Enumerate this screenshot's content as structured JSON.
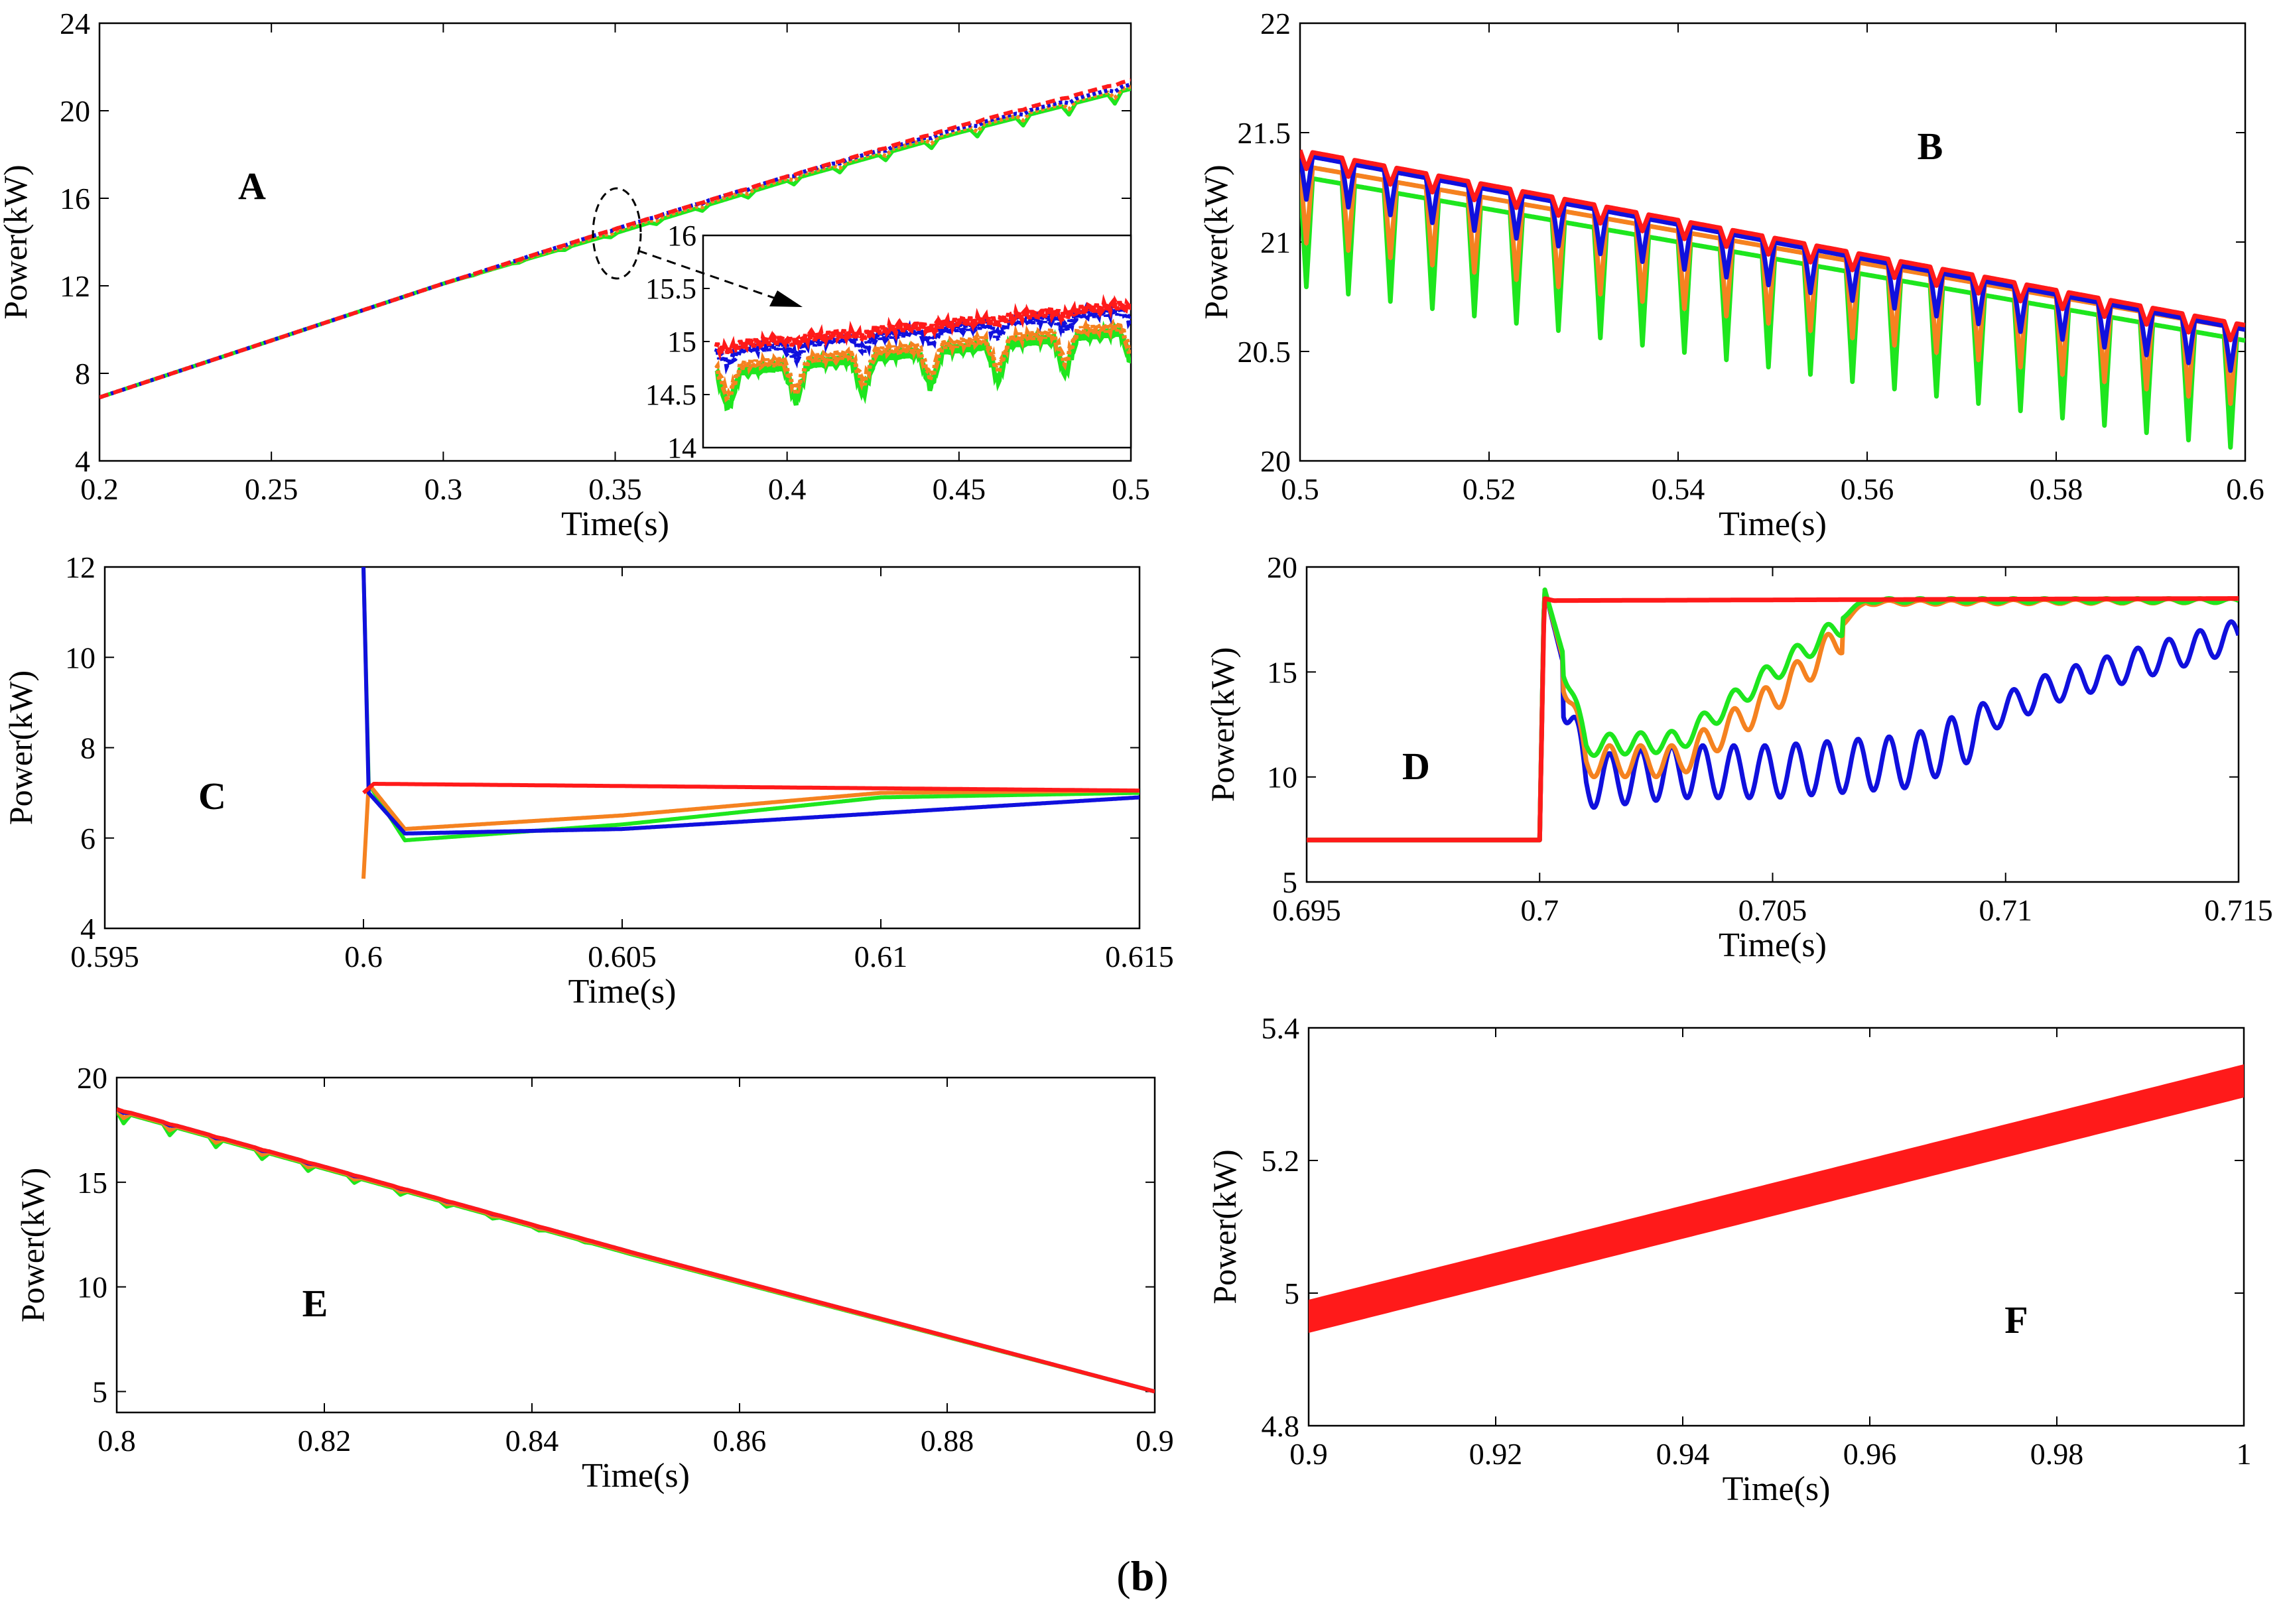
{
  "caption": {
    "paren_open": "(",
    "label": "b",
    "paren_close": ")"
  },
  "colors": {
    "red": "#ff1a1a",
    "orange": "#f58220",
    "green": "#1ee61e",
    "blue": "#1010dd"
  },
  "chart_data": [
    {
      "id": "A",
      "type": "line",
      "panel_label": "A",
      "xlabel": "Time(s)",
      "ylabel": "Power(kW)",
      "xlim": [
        0.2,
        0.5
      ],
      "ylim": [
        4,
        24
      ],
      "xticks": [
        "0.2",
        "0.25",
        "0.3",
        "0.35",
        "0.4",
        "0.45",
        "0.5"
      ],
      "yticks": [
        "4",
        "8",
        "12",
        "16",
        "20",
        "24"
      ],
      "series": [
        {
          "color": "green",
          "style": "solid",
          "x": [
            0.2,
            0.3,
            0.35,
            0.4,
            0.45,
            0.5
          ],
          "y": [
            6.9,
            12.1,
            14.4,
            16.8,
            19.0,
            21.0
          ],
          "ripple": 0.5
        },
        {
          "color": "orange",
          "style": "dotted",
          "x": [
            0.2,
            0.3,
            0.35,
            0.4,
            0.45,
            0.5
          ],
          "y": [
            6.9,
            12.1,
            14.5,
            16.9,
            19.1,
            21.1
          ],
          "ripple": 0.35
        },
        {
          "color": "blue",
          "style": "dotted",
          "x": [
            0.2,
            0.3,
            0.35,
            0.4,
            0.45,
            0.5
          ],
          "y": [
            6.9,
            12.1,
            14.6,
            17.0,
            19.2,
            21.2
          ],
          "ripple": 0.15
        },
        {
          "color": "red",
          "style": "dashed",
          "x": [
            0.2,
            0.3,
            0.35,
            0.4,
            0.45,
            0.5
          ],
          "y": [
            6.9,
            12.1,
            14.6,
            17.0,
            19.3,
            21.4
          ],
          "ripple": 0.05
        }
      ],
      "inset": {
        "ylim": [
          14,
          16
        ],
        "yticks": [
          "14",
          "14.5",
          "15",
          "15.5",
          "16"
        ],
        "series": [
          {
            "color": "green",
            "x": [
              0,
              1
            ],
            "y": [
              14.7,
              15.1
            ],
            "dip": 0.35
          },
          {
            "color": "orange",
            "x": [
              0,
              1
            ],
            "y": [
              14.75,
              15.15
            ],
            "dip": 0.3
          },
          {
            "color": "blue",
            "x": [
              0,
              1
            ],
            "y": [
              14.9,
              15.3
            ],
            "dip": 0.12
          },
          {
            "color": "red",
            "x": [
              0,
              1
            ],
            "y": [
              14.95,
              15.35
            ],
            "dip": 0.04
          }
        ]
      }
    },
    {
      "id": "B",
      "type": "line",
      "panel_label": "B",
      "xlabel": "Time(s)",
      "ylabel": "Power(kW)",
      "xlim": [
        0.5,
        0.6
      ],
      "ylim": [
        20,
        22
      ],
      "xticks": [
        "0.5",
        "0.52",
        "0.54",
        "0.56",
        "0.58",
        "0.6"
      ],
      "yticks": [
        "20",
        "20.5",
        "21",
        "21.5",
        "22"
      ],
      "series": [
        {
          "color": "green",
          "x": [
            0.5,
            0.6
          ],
          "y": [
            21.3,
            20.55
          ],
          "ripple": 0.5
        },
        {
          "color": "orange",
          "x": [
            0.5,
            0.6
          ],
          "y": [
            21.35,
            20.6
          ],
          "ripple": 0.35
        },
        {
          "color": "blue",
          "x": [
            0.5,
            0.6
          ],
          "y": [
            21.4,
            20.6
          ],
          "ripple": 0.2
        },
        {
          "color": "red",
          "x": [
            0.5,
            0.6
          ],
          "y": [
            21.42,
            20.62
          ],
          "ripple": 0.08
        }
      ]
    },
    {
      "id": "C",
      "type": "line",
      "panel_label": "C",
      "xlabel": "Time(s)",
      "ylabel": "Power(kW)",
      "xlim": [
        0.595,
        0.615
      ],
      "ylim": [
        4,
        12
      ],
      "xticks": [
        "0.595",
        "0.6",
        "0.605",
        "0.61",
        "0.615"
      ],
      "yticks": [
        "4",
        "6",
        "8",
        "10",
        "12"
      ],
      "series": [
        {
          "color": "green",
          "x": [
            0.6,
            0.6001,
            0.6008,
            0.605,
            0.61,
            0.615
          ],
          "y": [
            12,
            7.2,
            5.95,
            6.3,
            6.9,
            7.0
          ]
        },
        {
          "color": "orange",
          "x": [
            0.6,
            0.6001,
            0.6008,
            0.605,
            0.61,
            0.615
          ],
          "y": [
            5.1,
            7.2,
            6.2,
            6.5,
            7.0,
            7.05
          ]
        },
        {
          "color": "blue",
          "x": [
            0.6,
            0.6001,
            0.6008,
            0.605,
            0.61,
            0.615
          ],
          "y": [
            12,
            7.0,
            6.1,
            6.2,
            6.55,
            6.9
          ]
        },
        {
          "color": "red",
          "x": [
            0.6,
            0.6002,
            0.615
          ],
          "y": [
            7.0,
            7.2,
            7.05
          ]
        }
      ]
    },
    {
      "id": "D",
      "type": "line",
      "panel_label": "D",
      "xlabel": "Time(s)",
      "ylabel": "Power(kW)",
      "xlim": [
        0.695,
        0.715
      ],
      "ylim": [
        5,
        20
      ],
      "xticks": [
        "0.695",
        "0.7",
        "0.705",
        "0.71",
        "0.715"
      ],
      "yticks": [
        "5",
        "10",
        "15",
        "20"
      ],
      "series": [
        {
          "color": "blue",
          "x": [
            0.695,
            0.7,
            0.7001,
            0.701,
            0.703,
            0.705,
            0.708,
            0.711,
            0.715
          ],
          "y": [
            7,
            7,
            19,
            11,
            11.5,
            11.5,
            12,
            15,
            17.5
          ],
          "ripple": 2.5
        },
        {
          "color": "orange",
          "x": [
            0.695,
            0.7,
            0.7001,
            0.701,
            0.703,
            0.705,
            0.707,
            0.715
          ],
          "y": [
            7,
            7,
            19,
            11.5,
            11.5,
            14.5,
            18.4,
            18.5
          ],
          "ripple": 1.5
        },
        {
          "color": "green",
          "x": [
            0.695,
            0.7,
            0.7001,
            0.701,
            0.703,
            0.705,
            0.707,
            0.715
          ],
          "y": [
            7,
            7,
            19,
            12,
            12.2,
            15.5,
            18.5,
            18.5
          ],
          "ripple": 1.0
        },
        {
          "color": "red",
          "x": [
            0.695,
            0.7,
            0.7001,
            0.7003,
            0.715
          ],
          "y": [
            7,
            7,
            18.5,
            18.4,
            18.5
          ]
        }
      ]
    },
    {
      "id": "E",
      "type": "line",
      "panel_label": "E",
      "xlabel": "Time(s)",
      "ylabel": "Power(kW)",
      "xlim": [
        0.8,
        0.9
      ],
      "ylim": [
        4,
        20
      ],
      "xticks": [
        "0.8",
        "0.82",
        "0.84",
        "0.86",
        "0.88",
        "0.9"
      ],
      "yticks": [
        "5",
        "10",
        "15",
        "20"
      ],
      "series": [
        {
          "color": "green",
          "x": [
            0.8,
            0.85,
            0.9
          ],
          "y": [
            18.4,
            11.5,
            5.0
          ],
          "ripple": 0.5
        },
        {
          "color": "orange",
          "x": [
            0.8,
            0.85,
            0.9
          ],
          "y": [
            18.45,
            11.55,
            5.0
          ],
          "ripple": 0.3
        },
        {
          "color": "blue",
          "x": [
            0.8,
            0.85,
            0.9
          ],
          "y": [
            18.5,
            11.6,
            5.0
          ],
          "ripple": 0.1
        },
        {
          "color": "red",
          "x": [
            0.8,
            0.85,
            0.9
          ],
          "y": [
            18.5,
            11.6,
            5.0
          ],
          "ripple": 0.03
        }
      ]
    },
    {
      "id": "F",
      "type": "line",
      "panel_label": "F",
      "xlabel": "Time(s)",
      "ylabel": "Power(kW)",
      "xlim": [
        0.9,
        1.0
      ],
      "ylim": [
        4.8,
        5.4
      ],
      "xticks": [
        "0.9",
        "0.92",
        "0.94",
        "0.96",
        "0.98",
        "1"
      ],
      "yticks": [
        "4.8",
        "5",
        "5.2",
        "5.4"
      ],
      "series": [
        {
          "color": "red",
          "x": [
            0.9,
            1.0
          ],
          "y": [
            4.965,
            5.32
          ],
          "band": 0.025
        }
      ]
    }
  ]
}
